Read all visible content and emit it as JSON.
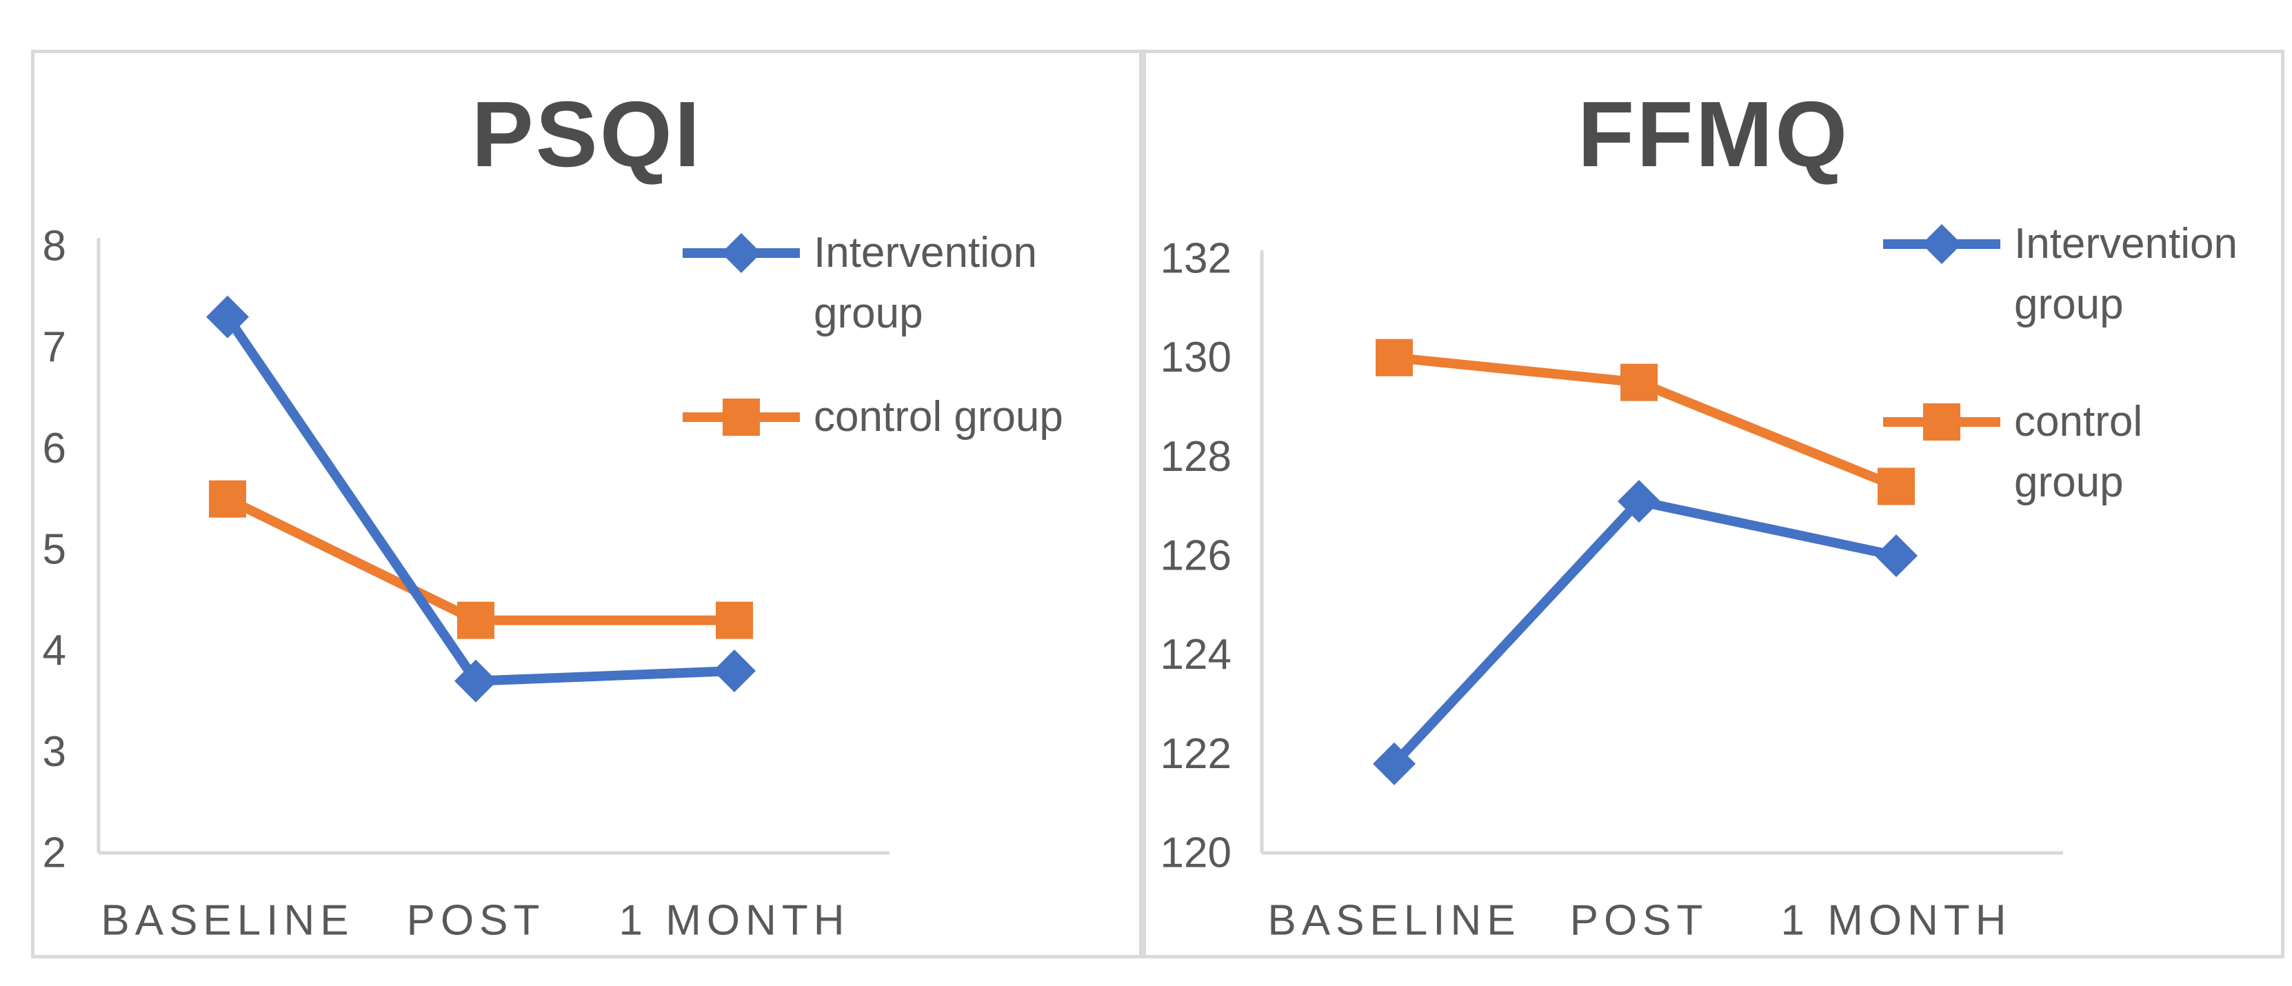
{
  "page": {
    "background": "#ffffff",
    "frame_border_color": "#d9d9d9",
    "panel_divider_color": "#d9d9d9"
  },
  "chart_data": [
    {
      "type": "line",
      "title": "PSQI",
      "categories": [
        "BASELINE",
        "POST",
        "1 MONTH"
      ],
      "ylim": [
        2,
        8
      ],
      "yticks": [
        8,
        7,
        6,
        5,
        4,
        3,
        2
      ],
      "xlabel": "",
      "ylabel": "",
      "grid": false,
      "legend_position": "right",
      "axis_color": "#d9d9d9",
      "tick_label_color": "#595959",
      "title_color": "#4d4d4d",
      "series": [
        {
          "name": "Intervention group",
          "color": "#4472C4",
          "marker": "diamond",
          "values": [
            7.3,
            3.7,
            3.8
          ]
        },
        {
          "name": "control group",
          "color": "#ED7D31",
          "marker": "square",
          "values": [
            5.5,
            4.3,
            4.3
          ]
        }
      ]
    },
    {
      "type": "line",
      "title": "FFMQ",
      "categories": [
        "BASELINE",
        "POST",
        "1 MONTH"
      ],
      "ylim": [
        120,
        132
      ],
      "yticks": [
        132,
        130,
        128,
        126,
        124,
        122,
        120
      ],
      "xlabel": "",
      "ylabel": "",
      "grid": false,
      "legend_position": "right",
      "axis_color": "#d9d9d9",
      "tick_label_color": "#595959",
      "title_color": "#4d4d4d",
      "series": [
        {
          "name": "Intervention group",
          "color": "#4472C4",
          "marker": "diamond",
          "values": [
            121.8,
            127.1,
            126.0
          ]
        },
        {
          "name": "control group",
          "color": "#ED7D31",
          "marker": "square",
          "values": [
            130.0,
            129.5,
            127.4
          ]
        }
      ]
    }
  ]
}
